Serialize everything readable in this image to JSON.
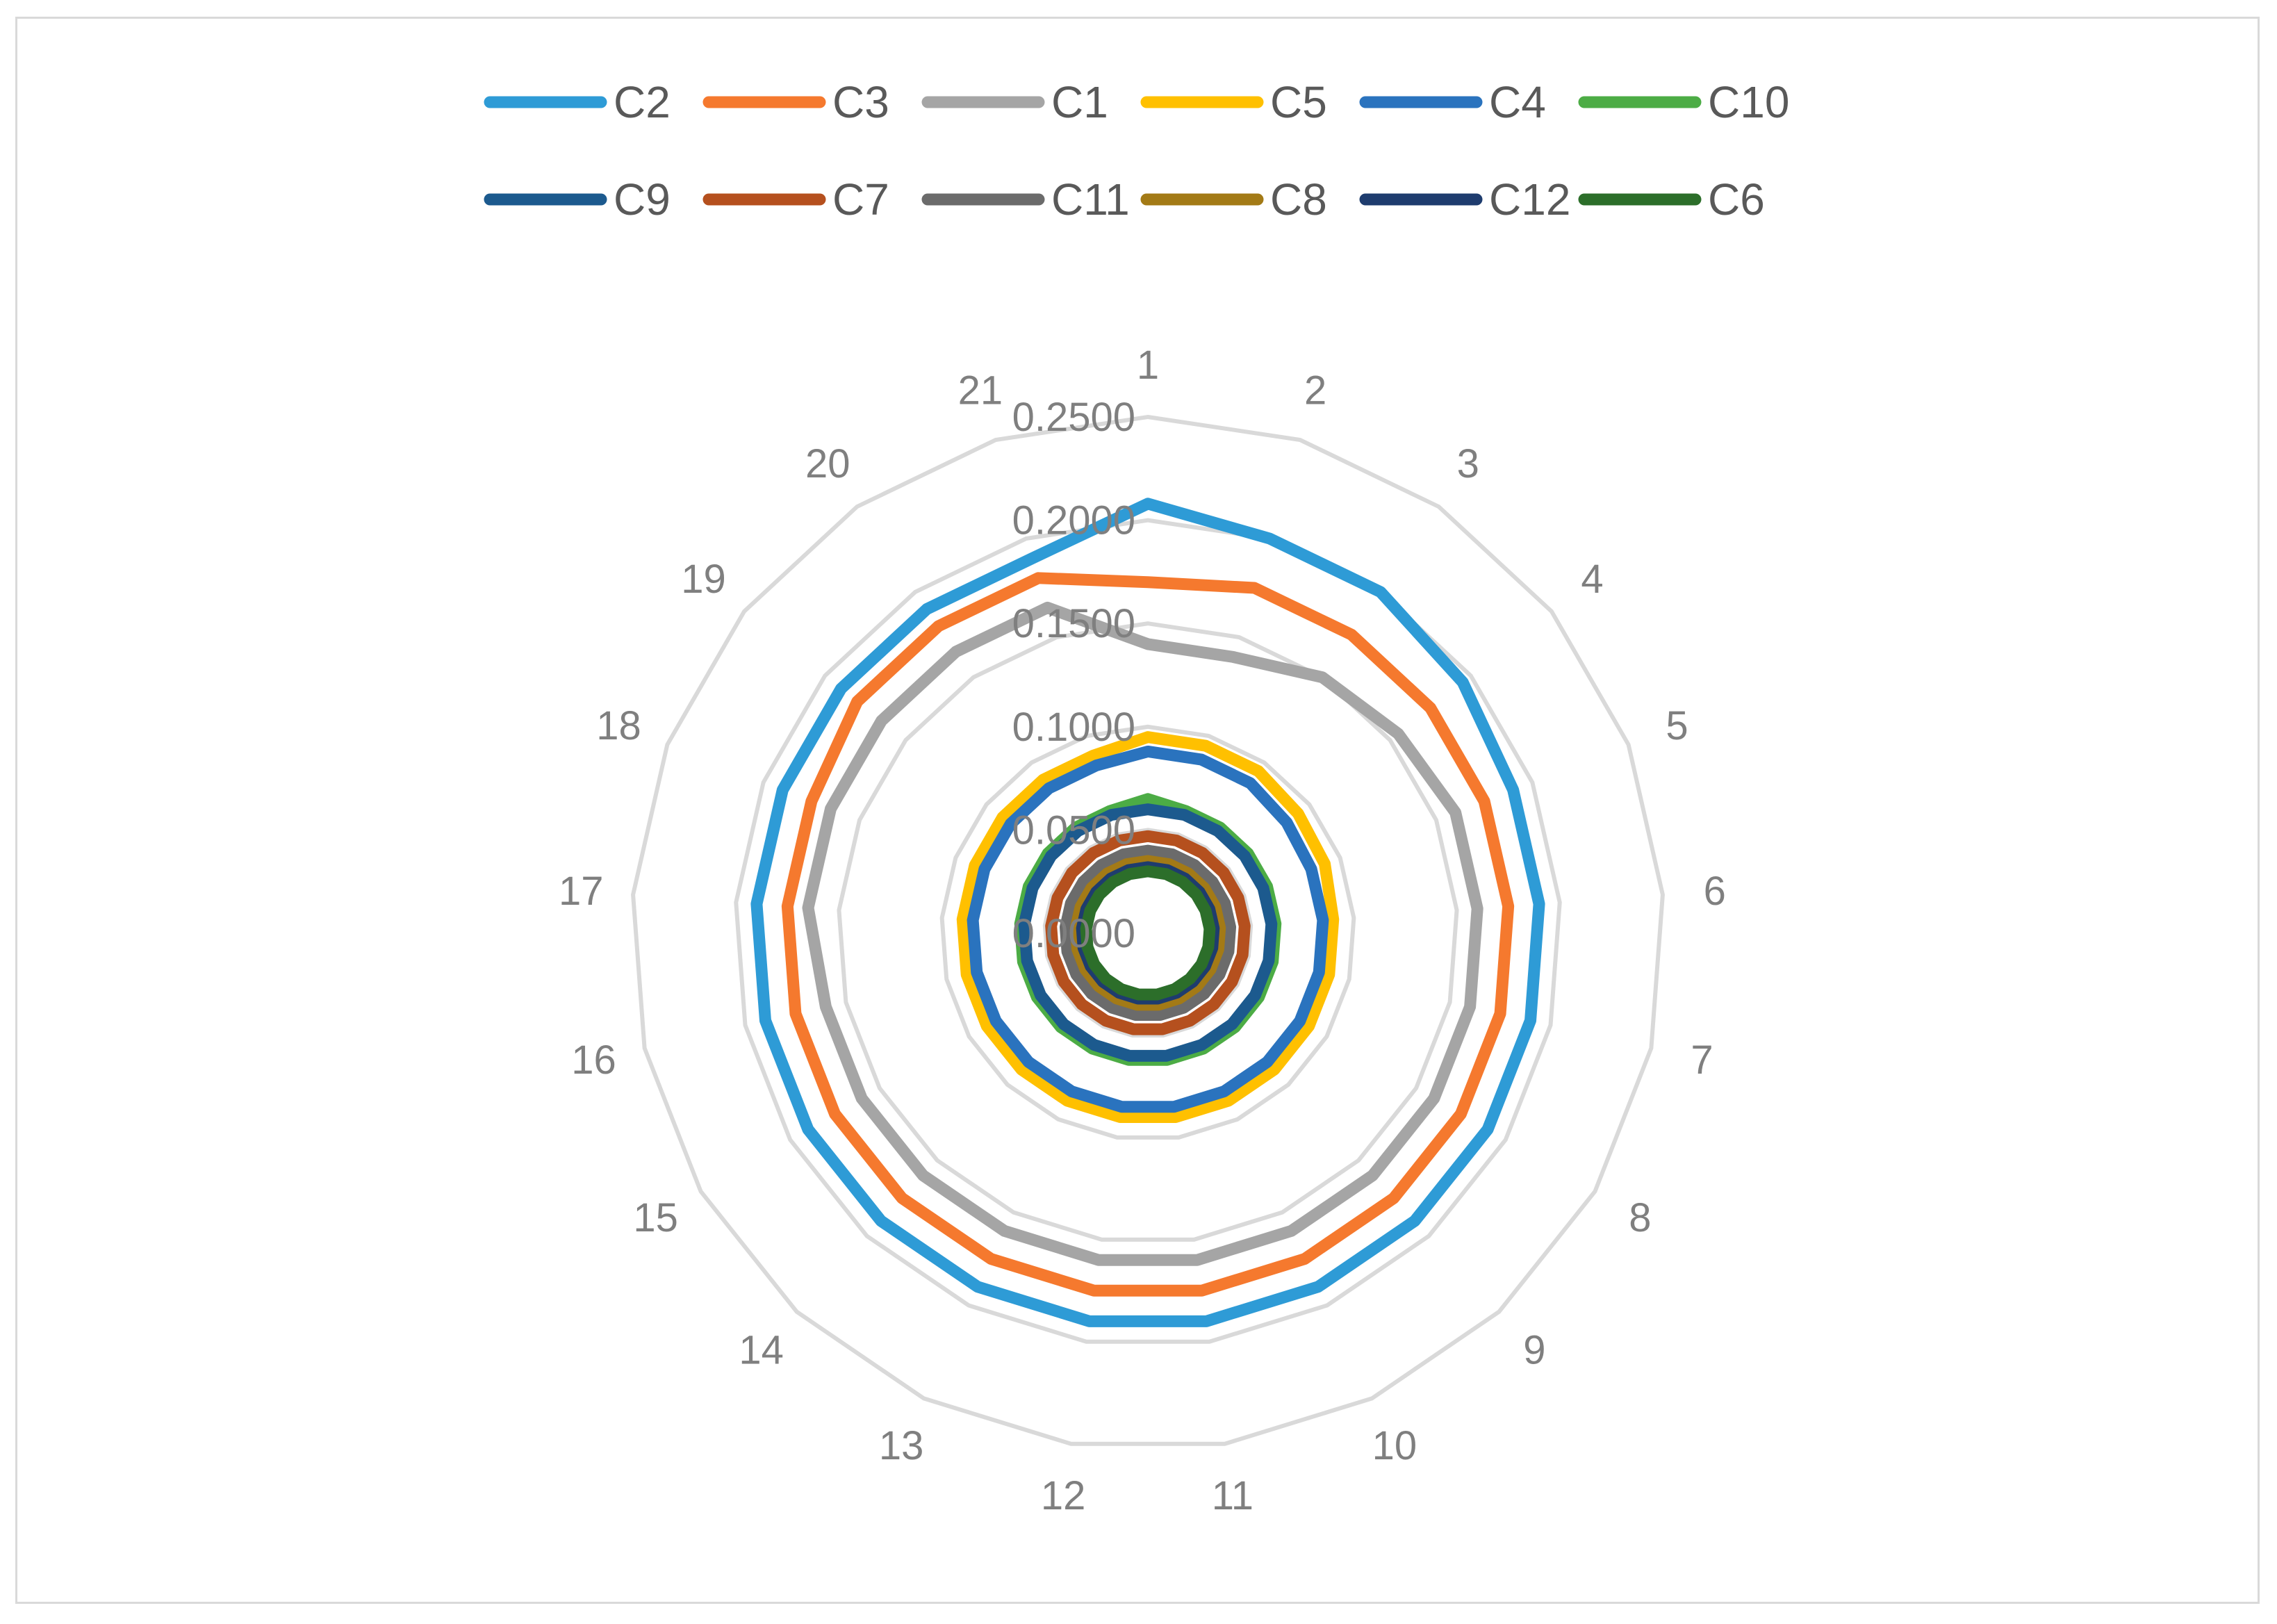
{
  "chart_data": {
    "type": "radar",
    "categories": [
      "1",
      "2",
      "3",
      "4",
      "5",
      "6",
      "7",
      "8",
      "9",
      "10",
      "11",
      "12",
      "13",
      "14",
      "15",
      "16",
      "17",
      "18",
      "19",
      "20",
      "21"
    ],
    "r_ticks": [
      "0.0000",
      "0.0500",
      "0.1000",
      "0.1500",
      "0.2000",
      "0.2500"
    ],
    "r_range": [
      0,
      0.25
    ],
    "grid": true,
    "legend_position": "top",
    "series": [
      {
        "name": "C2",
        "color": "#2e9bd6",
        "values": [
          0.208,
          0.2,
          0.2,
          0.195,
          0.19,
          0.19,
          0.19,
          0.19,
          0.19,
          0.19,
          0.19,
          0.19,
          0.19,
          0.19,
          0.19,
          0.19,
          0.19,
          0.19,
          0.19,
          0.19,
          0.19
        ]
      },
      {
        "name": "C3",
        "color": "#f5792e",
        "values": [
          0.17,
          0.175,
          0.175,
          0.175,
          0.175,
          0.175,
          0.175,
          0.175,
          0.175,
          0.175,
          0.175,
          0.175,
          0.175,
          0.175,
          0.175,
          0.175,
          0.175,
          0.175,
          0.18,
          0.18,
          0.18
        ]
      },
      {
        "name": "C1",
        "color": "#a5a5a5",
        "values": [
          0.14,
          0.14,
          0.15,
          0.155,
          0.16,
          0.16,
          0.16,
          0.16,
          0.16,
          0.16,
          0.16,
          0.16,
          0.16,
          0.16,
          0.16,
          0.16,
          0.165,
          0.165,
          0.165,
          0.165,
          0.165
        ]
      },
      {
        "name": "C5",
        "color": "#ffc000",
        "values": [
          0.095,
          0.095,
          0.095,
          0.093,
          0.092,
          0.09,
          0.09,
          0.09,
          0.09,
          0.09,
          0.09,
          0.09,
          0.09,
          0.09,
          0.09,
          0.09,
          0.09,
          0.09,
          0.09,
          0.09,
          0.09
        ]
      },
      {
        "name": "C4",
        "color": "#2a73be",
        "values": [
          0.088,
          0.088,
          0.088,
          0.086,
          0.085,
          0.085,
          0.085,
          0.085,
          0.085,
          0.085,
          0.085,
          0.085,
          0.085,
          0.085,
          0.085,
          0.085,
          0.085,
          0.085,
          0.085,
          0.085,
          0.085
        ]
      },
      {
        "name": "C10",
        "color": "#4cac45",
        "values": [
          0.065,
          0.062,
          0.062,
          0.062,
          0.062,
          0.062,
          0.062,
          0.062,
          0.062,
          0.062,
          0.062,
          0.062,
          0.062,
          0.062,
          0.062,
          0.062,
          0.062,
          0.062,
          0.062,
          0.062,
          0.062
        ]
      },
      {
        "name": "C9",
        "color": "#1c5a8e",
        "values": [
          0.06,
          0.06,
          0.06,
          0.06,
          0.06,
          0.06,
          0.06,
          0.06,
          0.06,
          0.06,
          0.06,
          0.06,
          0.06,
          0.06,
          0.06,
          0.06,
          0.06,
          0.06,
          0.06,
          0.06,
          0.06
        ]
      },
      {
        "name": "C7",
        "color": "#b5501e",
        "values": [
          0.047,
          0.047,
          0.047,
          0.047,
          0.047,
          0.047,
          0.047,
          0.047,
          0.047,
          0.047,
          0.047,
          0.047,
          0.047,
          0.047,
          0.047,
          0.047,
          0.047,
          0.047,
          0.047,
          0.047,
          0.047
        ]
      },
      {
        "name": "C11",
        "color": "#6b6b6b",
        "values": [
          0.04,
          0.04,
          0.04,
          0.04,
          0.04,
          0.04,
          0.04,
          0.04,
          0.04,
          0.04,
          0.04,
          0.04,
          0.04,
          0.04,
          0.04,
          0.04,
          0.04,
          0.04,
          0.04,
          0.04,
          0.04
        ]
      },
      {
        "name": "C8",
        "color": "#a37a16",
        "values": [
          0.035,
          0.035,
          0.035,
          0.035,
          0.035,
          0.035,
          0.035,
          0.035,
          0.035,
          0.035,
          0.035,
          0.035,
          0.035,
          0.035,
          0.035,
          0.035,
          0.035,
          0.035,
          0.035,
          0.035,
          0.035
        ]
      },
      {
        "name": "C12",
        "color": "#1e3c6e",
        "values": [
          0.032,
          0.032,
          0.032,
          0.032,
          0.032,
          0.032,
          0.032,
          0.032,
          0.032,
          0.032,
          0.032,
          0.032,
          0.032,
          0.032,
          0.032,
          0.032,
          0.032,
          0.032,
          0.032,
          0.032,
          0.032
        ]
      },
      {
        "name": "C6",
        "color": "#2c6e2a",
        "values": [
          0.03,
          0.03,
          0.03,
          0.03,
          0.03,
          0.03,
          0.03,
          0.03,
          0.03,
          0.03,
          0.03,
          0.03,
          0.03,
          0.03,
          0.03,
          0.03,
          0.03,
          0.03,
          0.03,
          0.03,
          0.03
        ]
      }
    ]
  }
}
